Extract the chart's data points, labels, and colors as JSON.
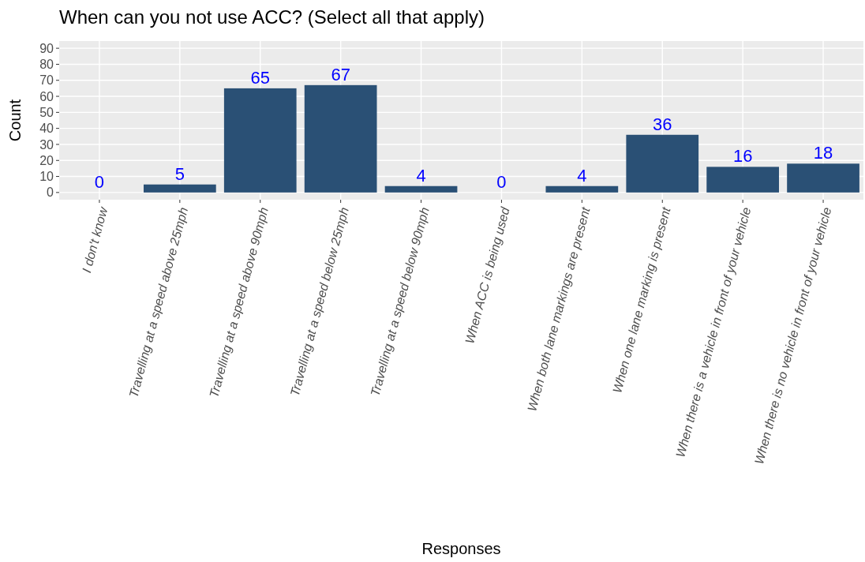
{
  "chart_data": {
    "type": "bar",
    "title": "When can you not use ACC? (Select all that apply)",
    "xlabel": "Responses",
    "ylabel": "Count",
    "categories": [
      "I don't know",
      "Travelling at a speed above 25mph",
      "Travelling at a speed above 90mph",
      "Travelling at a speed below 25mph",
      "Travelling at a speed below 90mph",
      "When ACC is being used",
      "When both lane markings are present",
      "When one lane marking is present",
      "When there is a vehicle in front of your vehicle",
      "When there is no vehicle in front of your vehicle"
    ],
    "values": [
      0,
      5,
      65,
      67,
      4,
      0,
      4,
      36,
      16,
      18
    ],
    "color": "#2a5075",
    "ylim": [
      -4.5,
      94.5
    ],
    "yticks": [
      0,
      10,
      20,
      30,
      40,
      50,
      60,
      70,
      80,
      90
    ],
    "grid": true,
    "data_labels": true
  }
}
